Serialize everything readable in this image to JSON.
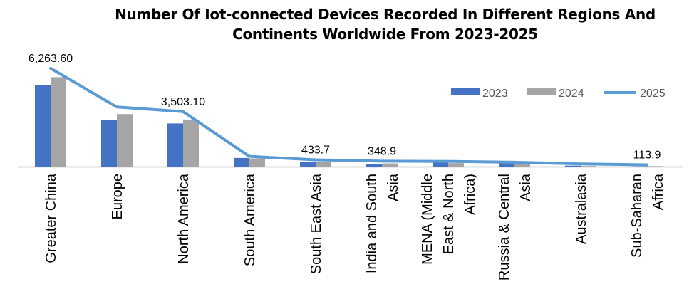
{
  "chart_data": {
    "type": "bar",
    "title_lines": [
      "Number Of Iot-connected Devices Recorded In Different Regions And",
      "Continents Worldwide From 2023-2025"
    ],
    "categories": [
      "Greater China",
      "Europe",
      "North America",
      "South America",
      "South East Asia",
      "India and South Asia",
      "MENA (Middle East & North Africa)",
      "Russia & Central Asia",
      "Australasia",
      "Sub-Saharan Africa"
    ],
    "category_label_lines": [
      [
        "Greater China"
      ],
      [
        "Europe"
      ],
      [
        "North America"
      ],
      [
        "South America"
      ],
      [
        "South East Asia"
      ],
      [
        "India and South",
        "Asia"
      ],
      [
        "MENA (Middle",
        "East & North",
        "Africa)"
      ],
      [
        "Russia & Central",
        "Asia"
      ],
      [
        "Australasia"
      ],
      [
        "Sub-Saharan",
        "Africa"
      ]
    ],
    "series": [
      {
        "name": "2023",
        "type": "bar",
        "color": "#4472C4",
        "values": [
          5200,
          2950,
          2750,
          550,
          300,
          170,
          250,
          230,
          60,
          10
        ]
      },
      {
        "name": "2024",
        "type": "bar",
        "color": "#A5A5A5",
        "values": [
          5700,
          3350,
          3000,
          520,
          300,
          200,
          220,
          220,
          40,
          30
        ]
      },
      {
        "name": "2025",
        "type": "line",
        "color": "#5B9BD5",
        "values": [
          6263.6,
          3800,
          3503.1,
          650,
          433.7,
          348.9,
          330,
          280,
          170,
          113.9
        ]
      }
    ],
    "data_labels": [
      {
        "series": "2025",
        "category": "Greater China",
        "text": "6,263.60"
      },
      {
        "series": "2025",
        "category": "North America",
        "text": "3,503.10"
      },
      {
        "series": "2025",
        "category": "South East Asia",
        "text": "433.7"
      },
      {
        "series": "2025",
        "category": "India and South Asia",
        "text": "348.9"
      },
      {
        "series": "2025",
        "category": "Sub-Saharan Africa",
        "text": "113.9"
      }
    ],
    "ylim": [
      0,
      6263.6
    ],
    "y_axis_visible": false,
    "grid": false,
    "legend": "top-right"
  }
}
